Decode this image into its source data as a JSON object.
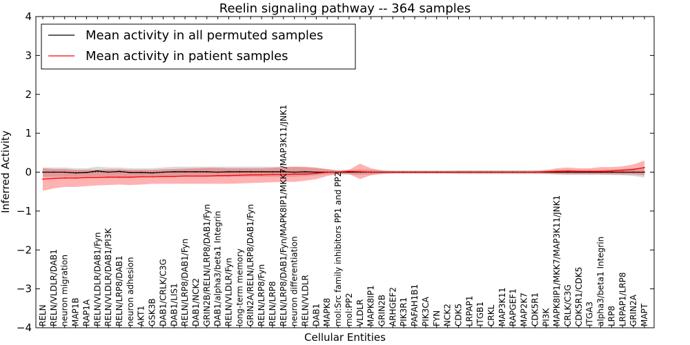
{
  "chart_data": {
    "type": "line",
    "title": "Reelin signaling pathway -- 364 samples",
    "xlabel": "Cellular Entities",
    "ylabel": "Inferred Activity",
    "ylim": [
      -4,
      4
    ],
    "yticks": [
      "−4",
      "−3",
      "−2",
      "−1",
      "0",
      "1",
      "2",
      "3",
      "4"
    ],
    "grid": false,
    "legend_position": "top-left",
    "categories": [
      "RELN",
      "RELN/VLDLR/DAB1",
      "neuron migration",
      "MAP1B",
      "RAP1A",
      "RELN/VLDLR/DAB1/Fyn",
      "RELN/VLDLR/DAB1/PI3K",
      "RELN/LRP8/DAB1",
      "neuron adhesion",
      "AKT1",
      "GSK3B",
      "DAB1/CRLK/C3G",
      "DAB1/LIS1",
      "RELN/LRP8/DAB1/Fyn",
      "DAB1/NCK2",
      "GRIN2B/RELN/LRP8/DAB1/Fyn",
      "DAB1/alpha3/beta1 Integrin",
      "RELN/VLDLR/Fyn",
      "long-term memory",
      "GRIN2A/RELN/LRP8/DAB1/Fyn",
      "RELN/LRP8/Fyn",
      "RELN/LRP8",
      "RELN/LRP8/DAB1/Fyn/MAPK8IP1/MKK7/MAP3K11/JNK1",
      "neuron differentiation",
      "RELN/VLDLR",
      "DAB1",
      "MAPK8",
      "mol:Src family inhibitors PP1 and PP2",
      "mol:PP2",
      "VLDLR",
      "MAPK8IP1",
      "GRIN2B",
      "ARHGEF2",
      "PIK3R1",
      "PAFAH1B1",
      "PIK3CA",
      "FYN",
      "NCK2",
      "CDK5",
      "LRPAP1",
      "ITGB1",
      "CRKL",
      "MAP3K11",
      "RAPGEF1",
      "MAP2K7",
      "CDK5R1",
      "PI3K",
      "MAPK8IP1/MKK7/MAP3K11/JNK1",
      "CRLK/C3G",
      "CDK5R1/CDK5",
      "ITGA3",
      "alpha3/beta1 Integrin",
      "LRP8",
      "LRPAP1/LRP8",
      "GRIN2A",
      "MAPT"
    ],
    "series": [
      {
        "name": "Mean activity in all permuted samples",
        "color": "#000000",
        "values": [
          0.0,
          0.0,
          0.0,
          -0.02,
          -0.01,
          0.03,
          0.0,
          0.02,
          -0.01,
          -0.01,
          -0.02,
          0.0,
          0.01,
          0.01,
          0.01,
          0.01,
          0.0,
          0.01,
          0.01,
          0.01,
          0.01,
          0.01,
          0.01,
          0.0,
          0.01,
          0.0,
          0.0,
          0.0,
          0.0,
          0.0,
          0.0,
          0.0,
          0.0,
          0.0,
          0.0,
          0.0,
          0.0,
          0.0,
          0.0,
          0.0,
          0.0,
          0.0,
          0.0,
          0.0,
          0.0,
          0.0,
          0.0,
          0.0,
          0.0,
          0.0,
          0.0,
          0.0,
          0.0,
          0.0,
          0.0,
          0.0
        ],
        "lower": [
          -0.12,
          -0.12,
          -0.12,
          -0.12,
          -0.12,
          -0.12,
          -0.12,
          -0.12,
          -0.12,
          -0.12,
          -0.12,
          -0.12,
          -0.12,
          -0.12,
          -0.12,
          -0.12,
          -0.12,
          -0.12,
          -0.12,
          -0.12,
          -0.12,
          -0.12,
          -0.12,
          -0.12,
          -0.1,
          -0.08,
          -0.06,
          -0.05,
          -0.06,
          -0.07,
          -0.06,
          -0.05,
          -0.04,
          -0.04,
          -0.04,
          -0.04,
          -0.04,
          -0.04,
          -0.05,
          -0.05,
          -0.05,
          -0.05,
          -0.05,
          -0.05,
          -0.05,
          -0.05,
          -0.05,
          -0.06,
          -0.06,
          -0.06,
          -0.06,
          -0.06,
          -0.07,
          -0.08,
          -0.1,
          -0.14
        ],
        "upper": [
          0.12,
          0.12,
          0.12,
          0.1,
          0.1,
          0.14,
          0.12,
          0.12,
          0.1,
          0.1,
          0.1,
          0.12,
          0.14,
          0.14,
          0.14,
          0.14,
          0.14,
          0.14,
          0.14,
          0.14,
          0.14,
          0.14,
          0.14,
          0.14,
          0.12,
          0.1,
          0.07,
          0.05,
          0.06,
          0.07,
          0.06,
          0.05,
          0.04,
          0.04,
          0.04,
          0.04,
          0.04,
          0.04,
          0.05,
          0.05,
          0.05,
          0.05,
          0.05,
          0.05,
          0.05,
          0.05,
          0.05,
          0.06,
          0.06,
          0.06,
          0.06,
          0.06,
          0.07,
          0.08,
          0.1,
          0.12
        ]
      },
      {
        "name": "Mean activity in patient samples",
        "color": "#ff0000",
        "values": [
          -0.18,
          -0.16,
          -0.15,
          -0.15,
          -0.14,
          -0.14,
          -0.13,
          -0.13,
          -0.13,
          -0.12,
          -0.12,
          -0.11,
          -0.11,
          -0.1,
          -0.1,
          -0.1,
          -0.09,
          -0.09,
          -0.08,
          -0.07,
          -0.07,
          -0.06,
          -0.06,
          -0.05,
          -0.05,
          -0.03,
          0.0,
          0.0,
          0.02,
          0.01,
          0.0,
          0.0,
          0.0,
          0.0,
          0.0,
          0.0,
          0.0,
          0.0,
          0.0,
          0.0,
          0.0,
          0.0,
          0.0,
          0.0,
          0.0,
          0.0,
          0.01,
          0.02,
          0.03,
          0.02,
          0.02,
          0.02,
          0.03,
          0.05,
          0.07,
          0.12
        ],
        "lower": [
          -0.48,
          -0.42,
          -0.38,
          -0.38,
          -0.36,
          -0.34,
          -0.33,
          -0.32,
          -0.33,
          -0.32,
          -0.3,
          -0.3,
          -0.3,
          -0.3,
          -0.3,
          -0.3,
          -0.3,
          -0.3,
          -0.29,
          -0.28,
          -0.27,
          -0.26,
          -0.25,
          -0.25,
          -0.22,
          -0.18,
          -0.1,
          -0.05,
          -0.05,
          -0.18,
          -0.08,
          -0.04,
          -0.03,
          -0.03,
          -0.03,
          -0.03,
          -0.03,
          -0.03,
          -0.03,
          -0.03,
          -0.03,
          -0.03,
          -0.03,
          -0.03,
          -0.03,
          -0.03,
          -0.04,
          -0.05,
          -0.06,
          -0.06,
          -0.06,
          -0.06,
          -0.06,
          -0.06,
          -0.06,
          -0.08
        ],
        "upper": [
          0.1,
          0.08,
          0.08,
          0.06,
          0.06,
          0.06,
          0.07,
          0.07,
          0.06,
          0.06,
          0.06,
          0.07,
          0.08,
          0.09,
          0.1,
          0.11,
          0.11,
          0.1,
          0.1,
          0.1,
          0.1,
          0.11,
          0.13,
          0.14,
          0.14,
          0.12,
          0.08,
          0.04,
          0.06,
          0.22,
          0.1,
          0.04,
          0.03,
          0.03,
          0.03,
          0.03,
          0.03,
          0.03,
          0.03,
          0.03,
          0.03,
          0.03,
          0.03,
          0.03,
          0.03,
          0.03,
          0.05,
          0.1,
          0.12,
          0.1,
          0.1,
          0.13,
          0.13,
          0.15,
          0.2,
          0.3
        ]
      }
    ]
  }
}
